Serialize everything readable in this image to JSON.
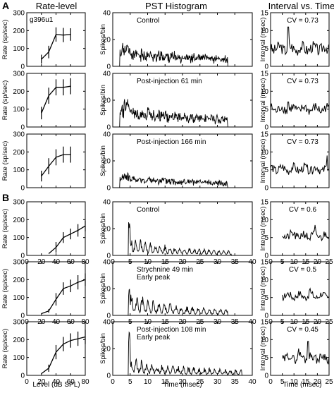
{
  "figure": {
    "section_labels": [
      "A",
      "B"
    ],
    "column_titles": [
      "Rate-level",
      "PST Histogram",
      "Interval vs. Time"
    ],
    "unit_id": "g396u1",
    "shared_axis_labels": {
      "rate_y": "Rate (sp/sec)",
      "rate_x": "Level (dB SPL)",
      "pst_y": "Spikes/bin",
      "pst_x": "Time (msec)",
      "int_y": "Interval (msec)",
      "int_x": "Time (msec)"
    },
    "colors": {
      "ink": "#000000",
      "background": "#ffffff"
    }
  },
  "chart_data": [
    {
      "panel": "A1-rate",
      "type": "line",
      "x": [
        20,
        30,
        40,
        50,
        60
      ],
      "y": [
        40,
        80,
        178,
        175,
        178
      ],
      "error": [
        25,
        35,
        40,
        40,
        35
      ]
    },
    {
      "panel": "A1-pst",
      "type": "line",
      "annotation": "Control",
      "seed": 11,
      "onset": 2,
      "peak": 13,
      "sustain": 6,
      "decay": 0.02,
      "noise": 0.55,
      "period": 0
    },
    {
      "panel": "A1-int",
      "type": "line",
      "annotation": "CV = 0.73",
      "seed": 3,
      "base": 5,
      "noise": 1.6,
      "spikes": [
        [
          0.3,
          11
        ]
      ]
    },
    {
      "panel": "A2-rate",
      "type": "line",
      "x": [
        20,
        30,
        40,
        50,
        60
      ],
      "y": [
        78,
        175,
        222,
        222,
        228
      ],
      "error": [
        35,
        45,
        45,
        45,
        45
      ]
    },
    {
      "panel": "A2-pst",
      "type": "line",
      "annotation": "Post-injection 61 min",
      "seed": 27,
      "onset": 2,
      "peak": 16,
      "sustain": 7,
      "decay": 0.025,
      "noise": 0.55,
      "period": 0
    },
    {
      "panel": "A2-int",
      "type": "line",
      "annotation": "CV = 0.73",
      "seed": 8,
      "base": 5,
      "noise": 1.3,
      "spikes": [
        [
          0.3,
          7
        ]
      ]
    },
    {
      "panel": "A3-rate",
      "type": "line",
      "x": [
        20,
        30,
        40,
        50,
        60
      ],
      "y": [
        65,
        120,
        170,
        185,
        185
      ],
      "error": [
        30,
        45,
        45,
        45,
        45
      ]
    },
    {
      "panel": "A3-pst",
      "type": "line",
      "annotation": "Post-injection 166 min",
      "seed": 41,
      "onset": 2,
      "peak": 8,
      "sustain": 4,
      "decay": 0.025,
      "noise": 0.55,
      "period": 0
    },
    {
      "panel": "A3-int",
      "type": "line",
      "annotation": "CV = 0.73",
      "seed": 14,
      "base": 5.2,
      "noise": 1.2,
      "spikes": [
        [
          0.97,
          9
        ]
      ]
    },
    {
      "panel": "B1-rate",
      "type": "line",
      "x": [
        30,
        40,
        50,
        60,
        70,
        80
      ],
      "y": [
        10,
        45,
        100,
        120,
        140,
        165
      ],
      "error": [
        0,
        30,
        30,
        30,
        35,
        30
      ]
    },
    {
      "panel": "B1-pst",
      "type": "line",
      "annotation": "Control",
      "seed": 5,
      "onset": 4.5,
      "peak": 26,
      "sustain": 6,
      "decay": 0.08,
      "noise": 0.35,
      "period": 1.4,
      "end": 34
    },
    {
      "panel": "B1-int",
      "type": "line",
      "annotation": "CV = 0.6",
      "seed": 21,
      "start": 5,
      "base": 5.5,
      "noise": 1.2,
      "spikes": [
        [
          0.7,
          8.5
        ]
      ]
    },
    {
      "panel": "B2-rate",
      "type": "line",
      "x": [
        20,
        30,
        40,
        50,
        60,
        70,
        80
      ],
      "y": [
        10,
        25,
        90,
        150,
        165,
        185,
        200
      ],
      "error": [
        0,
        10,
        35,
        35,
        35,
        40,
        35
      ]
    },
    {
      "panel": "B2-pst",
      "type": "line",
      "annotation": "Strychnine 49 min\nEarly peak",
      "seed": 33,
      "onset": 4.5,
      "peak": 21,
      "sustain": 7,
      "decay": 0.07,
      "noise": 0.4,
      "period": 1.6,
      "end": 33
    },
    {
      "panel": "B2-int",
      "type": "line",
      "annotation": "CV = 0.5",
      "seed": 17,
      "start": 5,
      "base": 5.5,
      "noise": 1.0,
      "spikes": [
        [
          0.6,
          7.5
        ]
      ]
    },
    {
      "panel": "B3-rate",
      "type": "line",
      "x": [
        20,
        30,
        40,
        50,
        60,
        70,
        80
      ],
      "y": [
        10,
        40,
        130,
        175,
        195,
        205,
        215
      ],
      "error": [
        0,
        20,
        40,
        40,
        40,
        40,
        40
      ]
    },
    {
      "panel": "B3-pst",
      "type": "line",
      "annotation": "Post-injection 108 min\nEarly peak",
      "seed": 9,
      "onset": 4.5,
      "peak": 37,
      "sustain": 5,
      "decay": 0.06,
      "noise": 0.45,
      "period": 1.5,
      "end": 37
    },
    {
      "panel": "B3-int",
      "type": "line",
      "annotation": "CV = 0.45",
      "seed": 29,
      "start": 5,
      "base": 5,
      "noise": 1.2,
      "spikes": [
        [
          0.55,
          9.5
        ],
        [
          0.35,
          7.5
        ]
      ]
    }
  ],
  "axes": {
    "A": {
      "rate": {
        "xlim": [
          0,
          80
        ],
        "ylim": [
          0,
          300
        ],
        "yticks": [
          "0",
          "100",
          "200",
          "300"
        ]
      },
      "pst": {
        "xlim": [
          0,
          40
        ],
        "ylim": [
          0,
          40
        ],
        "yticks": [
          "0",
          "20",
          "40"
        ]
      },
      "int": {
        "xlim": [
          0,
          25
        ],
        "ylim": [
          0,
          15
        ],
        "yticks": [
          "0",
          "5",
          "10",
          "15"
        ]
      }
    },
    "B": {
      "rate": {
        "xlim": [
          0,
          80
        ],
        "ylim": [
          0,
          300
        ],
        "yticks": [
          "0",
          "100",
          "200",
          "300"
        ],
        "xticks": [
          "0",
          "20",
          "40",
          "60",
          "80"
        ]
      },
      "pst": {
        "xlim": [
          0,
          40
        ],
        "ylim": [
          0,
          40
        ],
        "yticks": [
          "0",
          "20",
          "40"
        ],
        "xticks": [
          "0",
          "5",
          "10",
          "15",
          "20",
          "25",
          "30",
          "35",
          "40"
        ]
      },
      "int": {
        "xlim": [
          0,
          25
        ],
        "ylim": [
          0,
          15
        ],
        "yticks": [
          "0",
          "5",
          "10",
          "15"
        ],
        "xticks": [
          "0",
          "5",
          "10",
          "15",
          "20",
          "25"
        ]
      }
    }
  }
}
